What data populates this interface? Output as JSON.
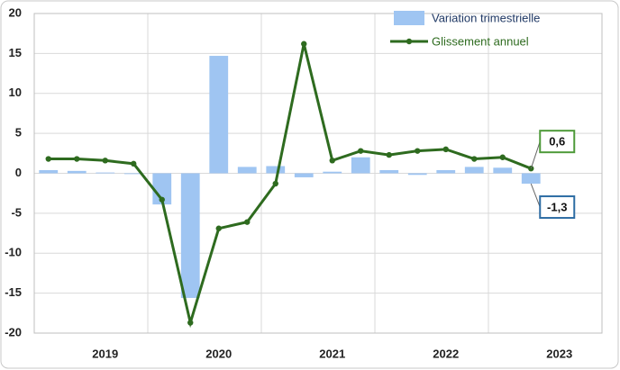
{
  "chart_data": {
    "type": "bar-line",
    "categories": [
      null,
      null,
      "2019",
      null,
      null,
      null,
      "2020",
      null,
      null,
      null,
      "2021",
      null,
      null,
      null,
      "2022",
      null,
      null,
      null,
      "2023",
      null
    ],
    "series": [
      {
        "name": "Variation trimestrielle",
        "type": "bar",
        "color": "#9fc5f2",
        "values": [
          0.4,
          0.3,
          0.1,
          -0.1,
          -3.9,
          -15.6,
          14.7,
          0.8,
          0.9,
          -0.5,
          0.2,
          2.0,
          0.4,
          -0.2,
          0.4,
          0.8,
          0.7,
          -1.3,
          null,
          null
        ],
        "value_labels": [
          null,
          null,
          null,
          null,
          null,
          null,
          null,
          null,
          null,
          null,
          null,
          null,
          null,
          null,
          null,
          null,
          null,
          "-1,3",
          null,
          null
        ]
      },
      {
        "name": "Glissement annuel",
        "type": "line",
        "color": "#2e6b1f",
        "values": [
          1.8,
          1.8,
          1.6,
          1.2,
          -3.3,
          -18.7,
          -6.9,
          -6.1,
          -1.3,
          16.2,
          1.6,
          2.8,
          2.3,
          2.8,
          3.0,
          1.8,
          2.0,
          0.6,
          null,
          null
        ],
        "value_labels": [
          null,
          null,
          null,
          null,
          null,
          null,
          null,
          null,
          null,
          null,
          null,
          null,
          null,
          null,
          null,
          null,
          null,
          "0,6",
          null,
          null
        ]
      }
    ],
    "ylim": [
      -20,
      20
    ],
    "yticks": [
      -20,
      -15,
      -10,
      -5,
      0,
      5,
      10,
      15,
      20
    ],
    "grid": true
  }
}
